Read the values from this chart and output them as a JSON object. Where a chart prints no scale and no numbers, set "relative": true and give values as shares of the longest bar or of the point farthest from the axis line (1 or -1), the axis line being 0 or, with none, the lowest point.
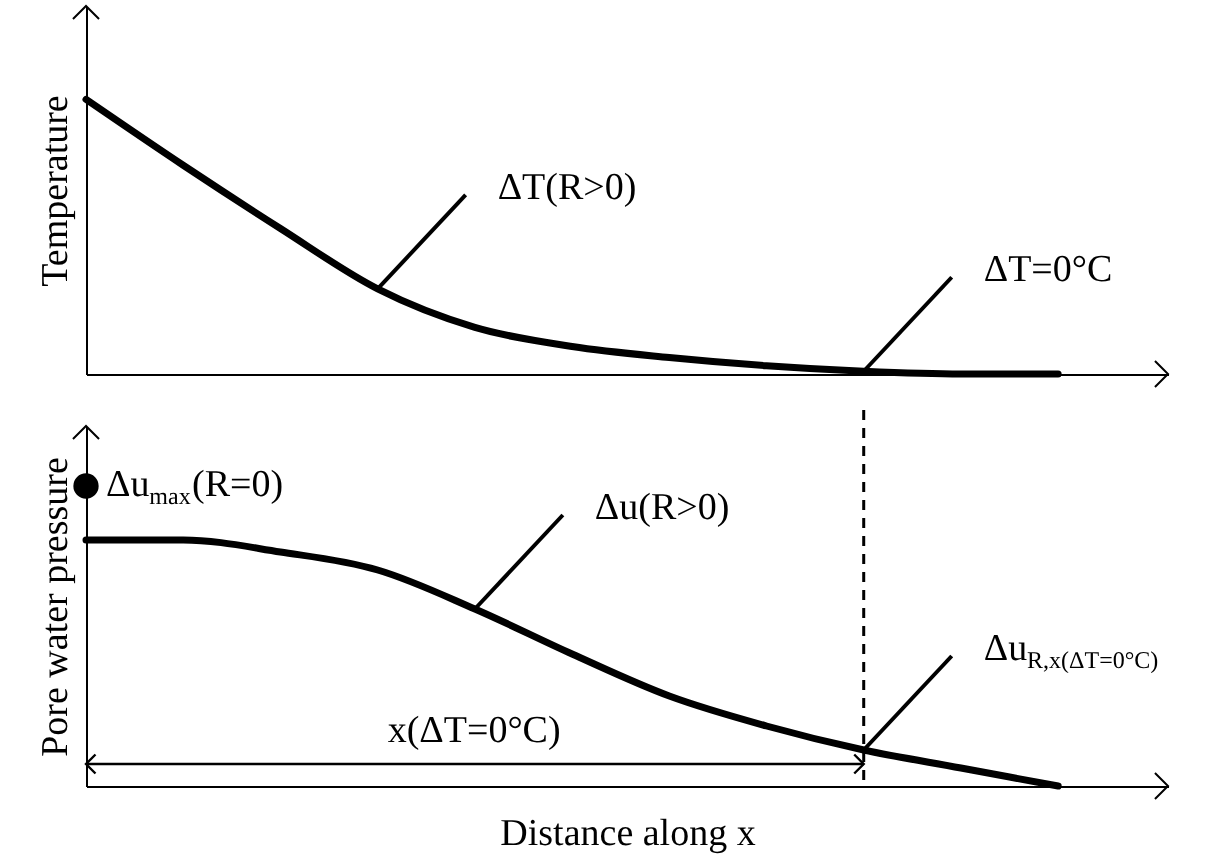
{
  "chart_data": [
    {
      "type": "line",
      "relative": true,
      "ylabel": "Temperature",
      "tick_labels": false,
      "grid": false,
      "marker": "none",
      "line_style": "solid",
      "categories": [
        null,
        null,
        null,
        null,
        null,
        null,
        null,
        null,
        null,
        null,
        null
      ],
      "series": [
        {
          "color": "#000000",
          "values": [
            1.0,
            0.76,
            0.53,
            0.31,
            0.17,
            0.1,
            0.06,
            0.03,
            0.01,
            0,
            0
          ]
        }
      ],
      "annotations": [
        "ΔT(R>0)",
        "ΔT=0°C"
      ]
    },
    {
      "type": "line",
      "relative": true,
      "ylabel": "Pore water pressure",
      "xlabel": "Distance along x",
      "tick_labels": false,
      "grid": false,
      "line_style": "solid",
      "categories": [
        null,
        null,
        null,
        null,
        null,
        null,
        null,
        null,
        null,
        null,
        null
      ],
      "series": [
        {
          "color": "#000000",
          "values": [
            0.82,
            0.82,
            0.78,
            0.72,
            0.59,
            0.44,
            0.3,
            0.2,
            0.12,
            0.06,
            0
          ]
        },
        {
          "type": "scatter",
          "marker": "circle",
          "color": "#000000",
          "values": [
            1,
            null,
            null,
            null,
            null,
            null,
            null,
            null,
            null,
            null,
            null
          ]
        }
      ],
      "annotations": [
        "Δu$_{max}$(R=0)",
        "Δu(R>0)",
        "Δu$_{R,x(ΔT=0°C)}$",
        "x(ΔT=0°C)"
      ]
    }
  ]
}
